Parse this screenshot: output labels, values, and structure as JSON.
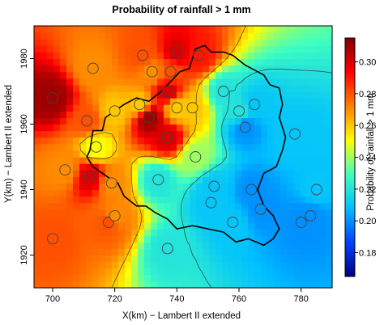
{
  "chart_data": {
    "type": "heatmap",
    "title": "Probability of rainfall > 1 mm",
    "xlabel": "X(km) − Lambert II extended",
    "ylabel": "Y(km) − Lambert II extended",
    "xlim": [
      694,
      790
    ],
    "ylim": [
      1910,
      1990
    ],
    "x_ticks": [
      700,
      720,
      740,
      760,
      780
    ],
    "y_ticks": [
      1920,
      1940,
      1960,
      1980
    ],
    "colorbar": {
      "label": "Probability of rainfall > 1 mm",
      "range": [
        0.165,
        0.315
      ],
      "ticks": [
        0.18,
        0.2,
        0.22,
        0.24,
        0.26,
        0.28,
        0.3
      ],
      "tick_labels": [
        "0.18",
        "0.20",
        "0.22",
        "0.24",
        "0.26",
        "0.28",
        "0.30"
      ],
      "colors": [
        "#00007f",
        "#0040ff",
        "#00bfff",
        "#40ffbf",
        "#ffff00",
        "#ff8000",
        "#ff0000",
        "#7f0000"
      ]
    },
    "stations": [
      {
        "x": 700,
        "y": 1968,
        "p": 0.31
      },
      {
        "x": 713,
        "y": 1977,
        "p": 0.27
      },
      {
        "x": 711,
        "y": 1961,
        "p": 0.28
      },
      {
        "x": 729,
        "y": 1981,
        "p": 0.28
      },
      {
        "x": 732,
        "y": 1976,
        "p": 0.27
      },
      {
        "x": 740,
        "y": 1982,
        "p": 0.3
      },
      {
        "x": 747,
        "y": 1981,
        "p": 0.29
      },
      {
        "x": 738,
        "y": 1976,
        "p": 0.28
      },
      {
        "x": 737,
        "y": 1970,
        "p": 0.3
      },
      {
        "x": 720,
        "y": 1964,
        "p": 0.26
      },
      {
        "x": 728,
        "y": 1966,
        "p": 0.26
      },
      {
        "x": 731,
        "y": 1962,
        "p": 0.31
      },
      {
        "x": 737,
        "y": 1956,
        "p": 0.3
      },
      {
        "x": 740,
        "y": 1965,
        "p": 0.26
      },
      {
        "x": 745,
        "y": 1965,
        "p": 0.26
      },
      {
        "x": 755,
        "y": 1970,
        "p": 0.22
      },
      {
        "x": 765,
        "y": 1966,
        "p": 0.21
      },
      {
        "x": 760,
        "y": 1964,
        "p": 0.22
      },
      {
        "x": 762,
        "y": 1959,
        "p": 0.2
      },
      {
        "x": 778,
        "y": 1957,
        "p": 0.21
      },
      {
        "x": 746,
        "y": 1950,
        "p": 0.24
      },
      {
        "x": 714,
        "y": 1953,
        "p": 0.25
      },
      {
        "x": 704,
        "y": 1946,
        "p": 0.27
      },
      {
        "x": 712,
        "y": 1944,
        "p": 0.3
      },
      {
        "x": 719,
        "y": 1942,
        "p": 0.27
      },
      {
        "x": 718,
        "y": 1930,
        "p": 0.28
      },
      {
        "x": 734,
        "y": 1943,
        "p": 0.22
      },
      {
        "x": 752,
        "y": 1941,
        "p": 0.21
      },
      {
        "x": 751,
        "y": 1936,
        "p": 0.21
      },
      {
        "x": 764,
        "y": 1940,
        "p": 0.2
      },
      {
        "x": 758,
        "y": 1930,
        "p": 0.21
      },
      {
        "x": 767,
        "y": 1934,
        "p": 0.2
      },
      {
        "x": 780,
        "y": 1930,
        "p": 0.2
      },
      {
        "x": 785,
        "y": 1940,
        "p": 0.21
      },
      {
        "x": 783,
        "y": 1932,
        "p": 0.2
      },
      {
        "x": 720,
        "y": 1932,
        "p": 0.27
      },
      {
        "x": 737,
        "y": 1922,
        "p": 0.22
      },
      {
        "x": 700,
        "y": 1925,
        "p": 0.28
      }
    ],
    "boundary": [
      [
        712,
        1952
      ],
      [
        713,
        1958
      ],
      [
        716,
        1958
      ],
      [
        717,
        1962
      ],
      [
        723,
        1966
      ],
      [
        727,
        1968
      ],
      [
        731,
        1967
      ],
      [
        735,
        1970
      ],
      [
        738,
        1973
      ],
      [
        741,
        1976
      ],
      [
        744,
        1977
      ],
      [
        746,
        1983
      ],
      [
        749,
        1984
      ],
      [
        751,
        1982
      ],
      [
        755,
        1982
      ],
      [
        758,
        1981
      ],
      [
        762,
        1978
      ],
      [
        766,
        1976
      ],
      [
        768,
        1975
      ],
      [
        770,
        1972
      ],
      [
        773,
        1971
      ],
      [
        774,
        1966
      ],
      [
        773,
        1962
      ],
      [
        775,
        1956
      ],
      [
        774,
        1952
      ],
      [
        772,
        1947
      ],
      [
        768,
        1945
      ],
      [
        766,
        1940
      ],
      [
        768,
        1935
      ],
      [
        771,
        1932
      ],
      [
        773,
        1928
      ],
      [
        771,
        1925
      ],
      [
        768,
        1923
      ],
      [
        763,
        1925
      ],
      [
        759,
        1924
      ],
      [
        755,
        1927
      ],
      [
        750,
        1928
      ],
      [
        745,
        1929
      ],
      [
        740,
        1928
      ],
      [
        737,
        1931
      ],
      [
        733,
        1933
      ],
      [
        730,
        1935
      ],
      [
        727,
        1935
      ],
      [
        723,
        1938
      ],
      [
        721,
        1942
      ],
      [
        719,
        1943
      ],
      [
        716,
        1945
      ],
      [
        713,
        1947
      ],
      [
        711,
        1950
      ],
      [
        712,
        1952
      ]
    ]
  }
}
